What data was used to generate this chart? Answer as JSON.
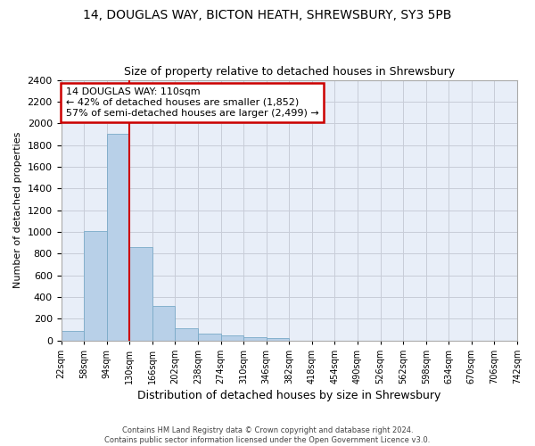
{
  "title1": "14, DOUGLAS WAY, BICTON HEATH, SHREWSBURY, SY3 5PB",
  "title2": "Size of property relative to detached houses in Shrewsbury",
  "xlabel": "Distribution of detached houses by size in Shrewsbury",
  "ylabel": "Number of detached properties",
  "bin_labels": [
    "22sqm",
    "58sqm",
    "94sqm",
    "130sqm",
    "166sqm",
    "202sqm",
    "238sqm",
    "274sqm",
    "310sqm",
    "346sqm",
    "382sqm",
    "418sqm",
    "454sqm",
    "490sqm",
    "526sqm",
    "562sqm",
    "598sqm",
    "634sqm",
    "670sqm",
    "706sqm",
    "742sqm"
  ],
  "bar_values": [
    90,
    1010,
    1900,
    860,
    320,
    115,
    60,
    50,
    30,
    20,
    0,
    0,
    0,
    0,
    0,
    0,
    0,
    0,
    0,
    0
  ],
  "bar_color": "#b8d0e8",
  "bar_edge_color": "#7aaac8",
  "vline_color": "#cc0000",
  "annotation_text": "14 DOUGLAS WAY: 110sqm\n← 42% of detached houses are smaller (1,852)\n57% of semi-detached houses are larger (2,499) →",
  "annotation_box_color": "#ffffff",
  "annotation_box_edge": "#cc0000",
  "ylim": [
    0,
    2400
  ],
  "yticks": [
    0,
    200,
    400,
    600,
    800,
    1000,
    1200,
    1400,
    1600,
    1800,
    2000,
    2200,
    2400
  ],
  "grid_color": "#c8ccd8",
  "bg_color": "#e8eef8",
  "footer": "Contains HM Land Registry data © Crown copyright and database right 2024.\nContains public sector information licensed under the Open Government Licence v3.0.",
  "title1_fontsize": 10,
  "title2_fontsize": 9,
  "xlabel_fontsize": 9,
  "ylabel_fontsize": 8,
  "vline_pos": 3.0
}
